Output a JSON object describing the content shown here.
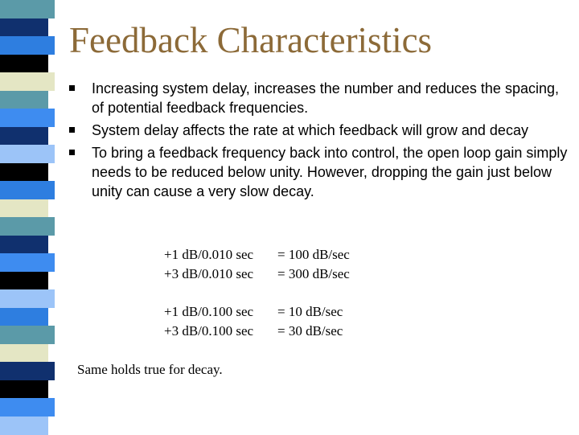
{
  "slide": {
    "title": "Feedback Characteristics",
    "colors": {
      "title": "#8c6a38",
      "text": "#000000",
      "stripe": [
        "#5b9aa8",
        "#10306e",
        "#2e7ee0",
        "#3e8cf0",
        "#9cc4f8",
        "#000000",
        "#e4e6c4"
      ]
    },
    "bullets": [
      {
        "text": "Increasing system delay, increases the number and reduces the spacing, of potential feedback frequencies."
      },
      {
        "text": "System delay affects the rate at which feedback will grow and decay"
      },
      {
        "text": "To bring a feedback frequency back into control, the open loop gain simply needs to be reduced below unity.  However, dropping the gain just below unity can cause a very slow decay."
      }
    ],
    "equations": [
      {
        "lhs": "+1 dB/0.010 sec",
        "rhs": "= 100 dB/sec"
      },
      {
        "lhs": "+3 dB/0.010 sec",
        "rhs": "= 300 dB/sec"
      },
      {
        "lhs": "+1 dB/0.100 sec",
        "rhs": "= 10 dB/sec"
      },
      {
        "lhs": "+3 dB/0.100 sec",
        "rhs": "= 30 dB/sec"
      }
    ],
    "note": "Same holds true for decay."
  }
}
